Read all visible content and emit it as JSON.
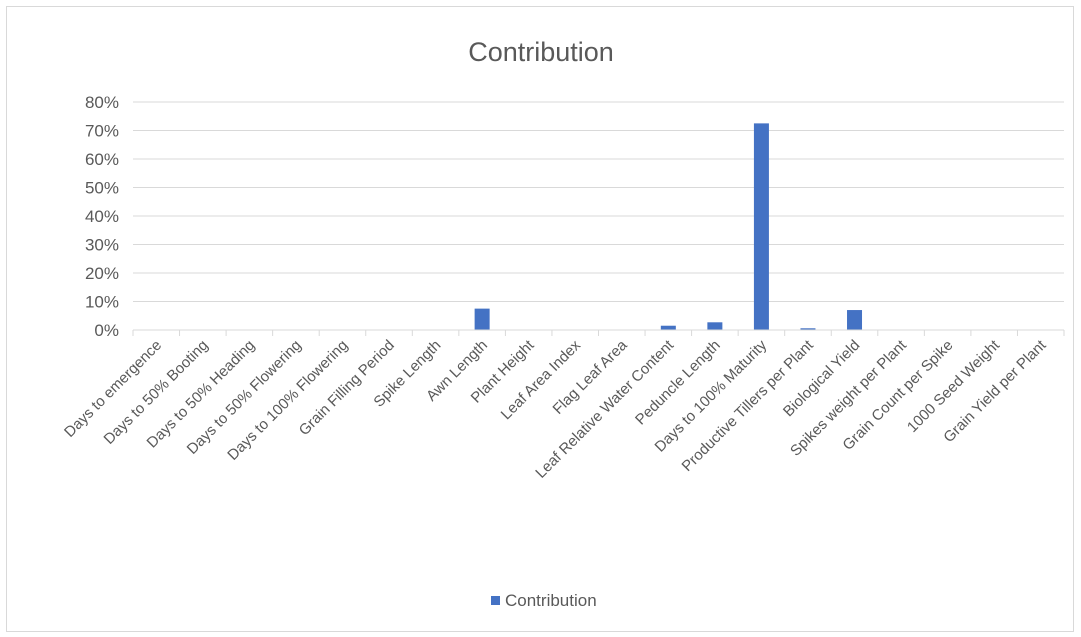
{
  "chart_data": {
    "type": "bar",
    "title": "Contribution",
    "xlabel": "",
    "ylabel": "",
    "ylim": [
      0,
      0.8
    ],
    "yticks": [
      "0%",
      "10%",
      "20%",
      "30%",
      "40%",
      "50%",
      "60%",
      "70%",
      "80%"
    ],
    "grid": true,
    "legend_position": "bottom",
    "bar_color": "#4472C4",
    "categories": [
      "Days to emergence",
      "Days to 50% Booting",
      "Days to 50% Heading",
      "Days to 50% Flowering",
      "Days to 100% Flowering",
      "Grain Filling Period",
      "Spike Length",
      "Awn Length",
      "Plant Height",
      "Leaf Area Index",
      "Flag Leaf Area",
      "Leaf Relative Water Content",
      "Peduncle Length",
      "Days to 100% Maturity",
      "Productive Tillers per Plant",
      "Biological Yield",
      "Spikes weight per Plant",
      "Grain Count per Spike",
      "1000 Seed Weight",
      "Grain Yield per Plant"
    ],
    "series": [
      {
        "name": "Contribution",
        "values": [
          0,
          0,
          0,
          0,
          0,
          0,
          0,
          0.075,
          0,
          0,
          0,
          0.015,
          0.027,
          0.725,
          0.006,
          0.07,
          0,
          0,
          0,
          0
        ]
      }
    ]
  }
}
